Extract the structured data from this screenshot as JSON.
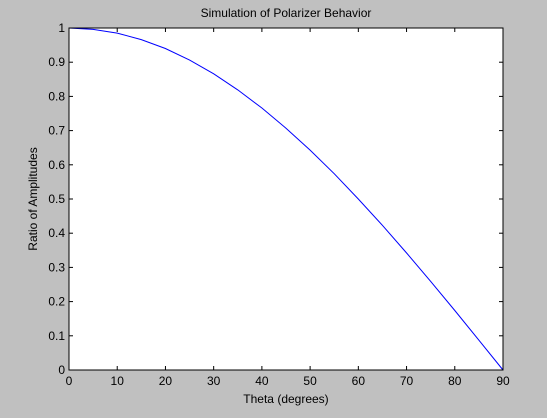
{
  "chart_data": {
    "type": "line",
    "title": "Simulation of Polarizer Behavior",
    "xlabel": "Theta (degrees)",
    "ylabel": "Ratio of Amplitudes",
    "xlim": [
      0,
      90
    ],
    "ylim": [
      0,
      1
    ],
    "xticks": [
      "0",
      "10",
      "20",
      "30",
      "40",
      "50",
      "60",
      "70",
      "80",
      "90"
    ],
    "yticks": [
      "0",
      "0.1",
      "0.2",
      "0.3",
      "0.4",
      "0.5",
      "0.6",
      "0.7",
      "0.8",
      "0.9",
      "1"
    ],
    "grid": false,
    "series": [
      {
        "color": "#0000ff",
        "x": [
          0,
          5,
          10,
          15,
          20,
          25,
          30,
          35,
          40,
          45,
          50,
          55,
          60,
          65,
          70,
          75,
          80,
          85,
          90
        ],
        "y": [
          1.0,
          0.996,
          0.985,
          0.966,
          0.94,
          0.906,
          0.866,
          0.819,
          0.766,
          0.707,
          0.643,
          0.574,
          0.5,
          0.423,
          0.342,
          0.259,
          0.174,
          0.087,
          0.0
        ]
      }
    ]
  }
}
